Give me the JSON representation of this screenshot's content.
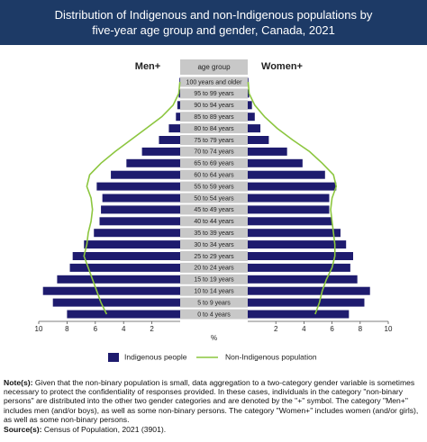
{
  "chart_data": {
    "type": "bar",
    "title": "Distribution of Indigenous and non-Indigenous populations by five-year age group and gender, Canada, 2021",
    "category_header": "age group",
    "left_label": "Men+",
    "right_label": "Women+",
    "x_label": "%",
    "categories": [
      "100 years and older",
      "95 to 99 years",
      "90 to 94 years",
      "85 to 89 years",
      "80 to 84 years",
      "75 to 79 years",
      "70 to 74 years",
      "65 to 69 years",
      "60 to 64 years",
      "55 to 59 years",
      "50 to 54 years",
      "45 to 49 years",
      "40 to 44 years",
      "35 to 39 years",
      "30 to 34 years",
      "25 to 29 years",
      "20 to 24 years",
      "15 to 19 years",
      "10 to 14 years",
      "5 to 9 years",
      "0 to 4 years"
    ],
    "series": [
      {
        "name": "Indigenous people",
        "mark": "bar",
        "color": "#1e1b6e",
        "men": [
          0.05,
          0.1,
          0.2,
          0.3,
          0.8,
          1.5,
          2.7,
          3.8,
          4.9,
          5.9,
          5.5,
          5.6,
          5.7,
          6.1,
          6.8,
          7.6,
          7.8,
          8.7,
          9.7,
          9.0,
          8.0
        ],
        "women": [
          0.05,
          0.1,
          0.3,
          0.5,
          0.9,
          1.5,
          2.8,
          3.9,
          5.5,
          6.3,
          5.8,
          5.8,
          6.0,
          6.6,
          7.0,
          7.5,
          7.3,
          7.8,
          8.7,
          8.3,
          7.2
        ]
      },
      {
        "name": "Non-Indigenous population",
        "mark": "line",
        "color": "#8cc63f",
        "men": [
          0.02,
          0.1,
          0.5,
          1.3,
          2.4,
          3.5,
          4.6,
          5.6,
          6.4,
          6.6,
          6.3,
          6.2,
          6.3,
          6.5,
          6.6,
          6.8,
          6.5,
          6.2,
          5.9,
          5.6,
          5.2
        ],
        "women": [
          0.03,
          0.1,
          0.5,
          1.2,
          2.1,
          3.2,
          4.4,
          5.3,
          6.1,
          6.3,
          6.0,
          5.9,
          6.0,
          6.1,
          6.2,
          6.2,
          6.0,
          5.6,
          5.3,
          5.1,
          4.8
        ]
      }
    ],
    "xlim": [
      0,
      10
    ],
    "xticks": [
      2,
      4,
      6,
      8,
      10
    ]
  },
  "notes": {
    "label": "Note(s):",
    "text": "Given that the non-binary population is small, data aggregation to a two-category gender variable is sometimes necessary to protect the confidentiality of responses provided. In these cases, individuals in the category \"non-binary persons\" are distributed into the other two gender categories and are denoted by the \"+\" symbol. The category \"Men+\" includes men (and/or boys), as well as some non-binary persons. The category \"Women+\" includes women (and/or girls), as well as some non-binary persons."
  },
  "source": {
    "label": "Source(s):",
    "text": "Census of Population, 2021 (3901)."
  }
}
